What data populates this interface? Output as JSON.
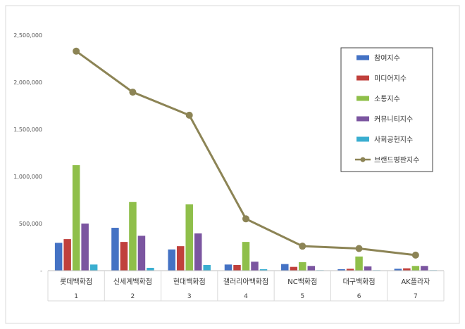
{
  "chart_data": {
    "type": "bar",
    "categories": [
      "롯데백화점",
      "신세계백화점",
      "현대백화점",
      "갤러리아백화점",
      "NC백화점",
      "대구백화점",
      "AK플라자"
    ],
    "category_numbers": [
      "1",
      "2",
      "3",
      "4",
      "5",
      "6",
      "7"
    ],
    "series": [
      {
        "name": "참여지수",
        "type": "bar",
        "color": "#4472c4",
        "values": [
          295000,
          455000,
          225000,
          65000,
          70000,
          15000,
          20000
        ]
      },
      {
        "name": "미디어지수",
        "type": "bar",
        "color": "#c0403c",
        "values": [
          335000,
          305000,
          260000,
          60000,
          40000,
          20000,
          25000
        ]
      },
      {
        "name": "소통지수",
        "type": "bar",
        "color": "#8fbf4a",
        "values": [
          1120000,
          730000,
          705000,
          305000,
          90000,
          150000,
          50000
        ]
      },
      {
        "name": "커뮤니티지수",
        "type": "bar",
        "color": "#7b55a0",
        "values": [
          500000,
          370000,
          395000,
          95000,
          50000,
          45000,
          50000
        ]
      },
      {
        "name": "사회공헌지수",
        "type": "bar",
        "color": "#3aaed0",
        "values": [
          65000,
          30000,
          60000,
          15000,
          5000,
          5000,
          5000
        ]
      },
      {
        "name": "브랜드평판지수",
        "type": "line",
        "color": "#8c8455",
        "values": [
          2330000,
          1895000,
          1650000,
          550000,
          260000,
          235000,
          165000
        ]
      }
    ],
    "yticks": [
      "-",
      "500,000",
      "1,000,000",
      "1,500,000",
      "2,000,000",
      "2,500,000"
    ],
    "ylim": [
      0,
      2500000
    ],
    "grid": false,
    "legend": "right"
  }
}
